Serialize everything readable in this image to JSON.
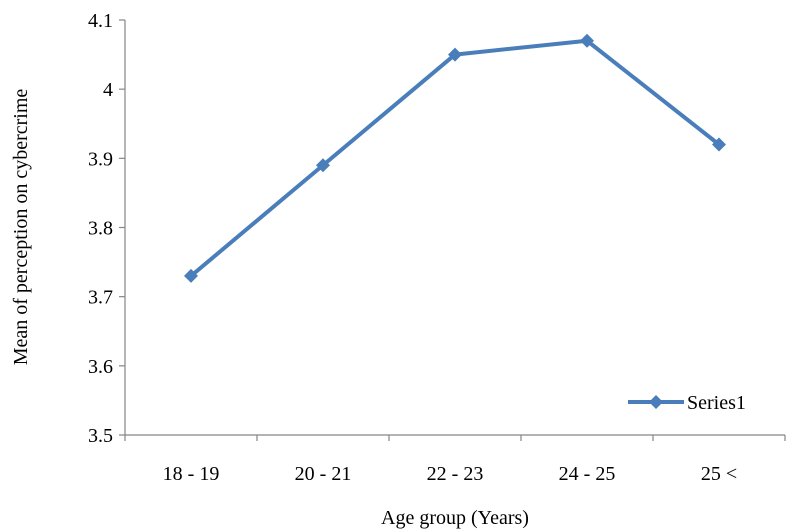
{
  "chart_data": {
    "type": "line",
    "title": "",
    "xlabel": "Age  group (Years)",
    "ylabel": "Mean of perception on cybercrime",
    "categories": [
      "18 - 19",
      "20 - 21",
      "22 - 23",
      "24 - 25",
      "25  <"
    ],
    "series": [
      {
        "name": "Series1",
        "values": [
          3.73,
          3.89,
          4.05,
          4.07,
          3.92
        ],
        "color": "#4a7ebb"
      }
    ],
    "ylim": [
      3.5,
      4.1
    ],
    "yticks": [
      "3.5",
      "3.6",
      "3.7",
      "3.8",
      "3.9",
      "4",
      "4.1"
    ],
    "grid": false,
    "legend": "bottom-right",
    "marker": "diamond"
  }
}
